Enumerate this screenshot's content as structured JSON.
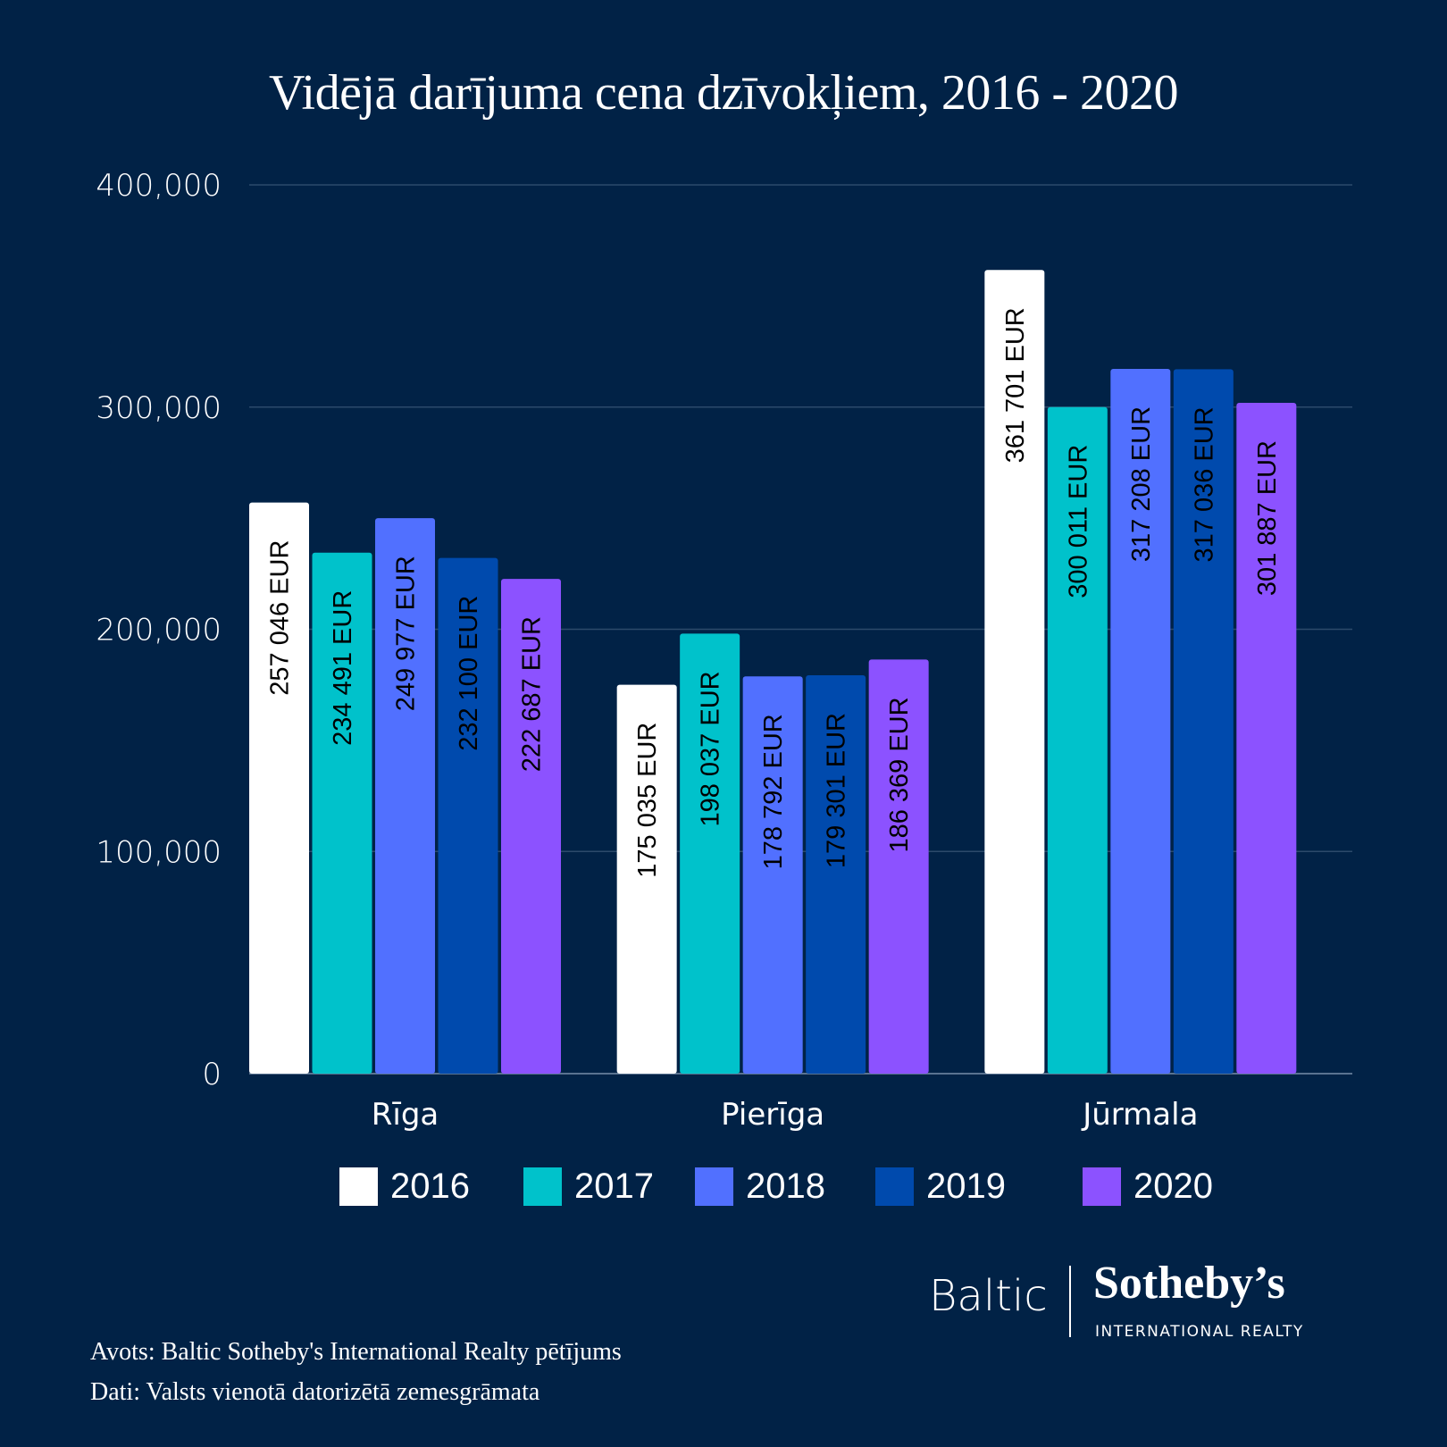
{
  "chart_data": {
    "type": "bar",
    "title": "Vidējā darījuma cena dzīvokļiem, 2016 -  2020",
    "categories": [
      "Rīga",
      "Pierīga",
      "Jūrmala"
    ],
    "series": [
      {
        "name": "2016",
        "color": "#ffffff",
        "values": [
          257046,
          175035,
          361701
        ],
        "labels": [
          "257 046 EUR",
          "175 035 EUR",
          "361 701 EUR"
        ]
      },
      {
        "name": "2017",
        "color": "#00c2cb",
        "values": [
          234491,
          198037,
          300011
        ],
        "labels": [
          "234 491 EUR",
          "198 037 EUR",
          "300 011 EUR"
        ]
      },
      {
        "name": "2018",
        "color": "#5170ff",
        "values": [
          249977,
          178792,
          317208
        ],
        "labels": [
          "249 977 EUR",
          "178 792 EUR",
          "317 208 EUR"
        ]
      },
      {
        "name": "2019",
        "color": "#004aad",
        "values": [
          232100,
          179301,
          317036
        ],
        "labels": [
          "232 100 EUR",
          "179 301 EUR",
          "317 036 EUR"
        ]
      },
      {
        "name": "2020",
        "color": "#8c52ff",
        "values": [
          222687,
          186369,
          301887
        ],
        "labels": [
          "222 687 EUR",
          "186 369 EUR",
          "301 887 EUR"
        ]
      }
    ],
    "yticks": [
      0,
      100000,
      200000,
      300000,
      400000
    ],
    "ytick_labels": [
      "0",
      "100,000",
      "200,000",
      "300,000",
      "400,000"
    ],
    "ylim": [
      0,
      400000
    ],
    "grid": true,
    "legend": "bottom",
    "xlabel": "",
    "ylabel": ""
  },
  "brand": {
    "baltic": "Baltic",
    "sothebys": "Sotheby’s",
    "sub": "INTERNATIONAL REALTY"
  },
  "footnotes": {
    "source": "Avots: Baltic Sotheby's International Realty pētījums",
    "data": "Dati: Valsts vienotā datorizētā zemesgrāmata"
  },
  "colors": {
    "background": "#012246",
    "gridline": "#2c4a6b"
  }
}
